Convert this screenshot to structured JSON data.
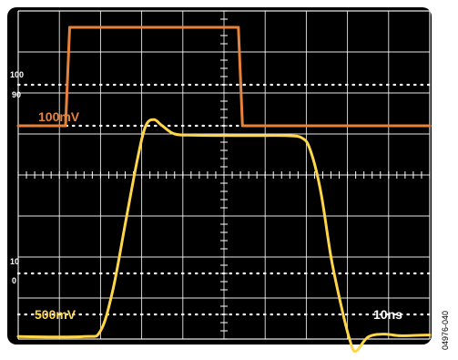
{
  "colors": {
    "screen_bg": "#000000",
    "grid": "#ffffff",
    "channel1": "#e8823a",
    "channel2": "#ffd54a",
    "label_white": "#ffffff",
    "figure_id": "#000000"
  },
  "figure_id": "04976-040",
  "labels": {
    "ch1_scale": "100mV",
    "ch2_scale": "500mV",
    "time_scale": "10ns",
    "ref_100": "100",
    "ref_90": "90",
    "ref_10": "10",
    "ref_0": "0"
  },
  "chart_data": {
    "type": "line",
    "grid": {
      "horizontal_divisions": 10,
      "vertical_divisions": 8,
      "minor_ticks_per_division": 5,
      "dotted_reference_levels_div": [
        6.2,
        5.2,
        1.6,
        0.6
      ]
    },
    "series": [
      {
        "color": "#e8823a",
        "points": [
          [
            0.0,
            5.2
          ],
          [
            1.0,
            5.2
          ],
          [
            1.15,
            5.2
          ],
          [
            1.25,
            7.6
          ],
          [
            5.35,
            7.6
          ],
          [
            5.45,
            5.2
          ],
          [
            10.0,
            5.2
          ]
        ]
      },
      {
        "color": "#ffd54a",
        "points": [
          [
            0.0,
            0.06
          ],
          [
            1.6,
            0.06
          ],
          [
            2.0,
            0.2
          ],
          [
            2.3,
            1.2
          ],
          [
            2.6,
            2.8
          ],
          [
            2.9,
            4.4
          ],
          [
            3.1,
            5.2
          ],
          [
            3.3,
            5.35
          ],
          [
            3.5,
            5.2
          ],
          [
            3.8,
            5.0
          ],
          [
            4.3,
            4.97
          ],
          [
            5.5,
            4.96
          ],
          [
            6.5,
            4.96
          ],
          [
            6.9,
            4.9
          ],
          [
            7.1,
            4.6
          ],
          [
            7.35,
            3.6
          ],
          [
            7.6,
            2.0
          ],
          [
            7.85,
            0.8
          ],
          [
            8.05,
            0.0
          ],
          [
            8.2,
            -0.3
          ],
          [
            8.5,
            0.05
          ],
          [
            8.9,
            0.12
          ],
          [
            9.3,
            0.08
          ],
          [
            10.0,
            0.1
          ]
        ]
      }
    ]
  }
}
